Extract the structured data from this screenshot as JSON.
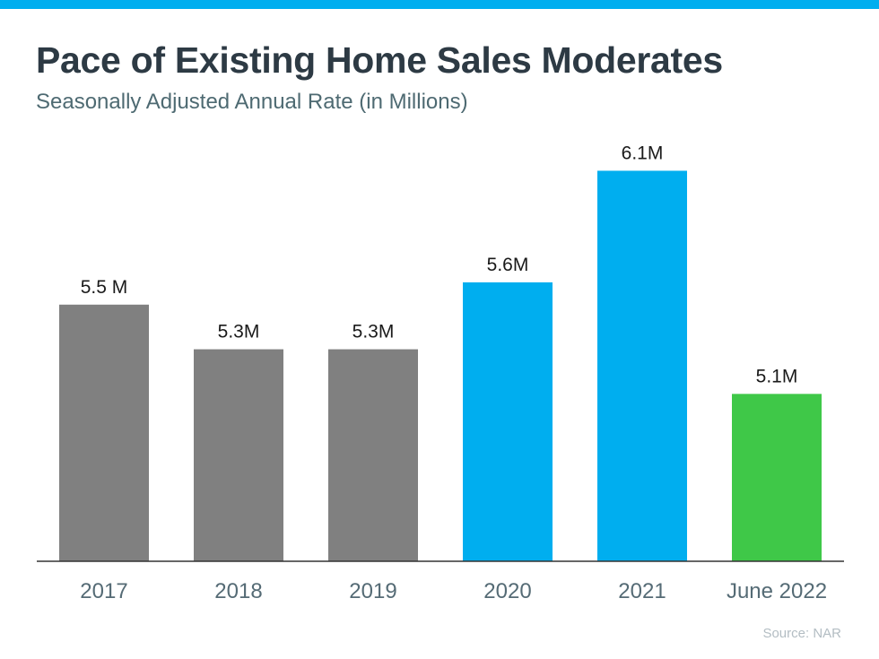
{
  "header": {
    "title": "Pace of Existing Home Sales Moderates",
    "subtitle": "Seasonally Adjusted Annual Rate (in Millions)"
  },
  "footer": {
    "source": "Source: NAR"
  },
  "colors": {
    "accent_bar": "#00aeef",
    "gray": "#808080",
    "blue": "#00aeef",
    "green": "#3fc848",
    "axis": "#333333",
    "tick_label": "#556b75",
    "value_label": "#1a1a1a"
  },
  "chart_data": {
    "type": "bar",
    "title": "Pace of Existing Home Sales Moderates",
    "subtitle": "Seasonally Adjusted Annual Rate (in Millions)",
    "xlabel": "",
    "ylabel": "",
    "categories": [
      "2017",
      "2018",
      "2019",
      "2020",
      "2021",
      "June 2022"
    ],
    "values": [
      5.5,
      5.3,
      5.3,
      5.6,
      6.1,
      5.1
    ],
    "value_labels": [
      "5.5 M",
      "5.3M",
      "5.3M",
      "5.6M",
      "6.1M",
      "5.1M"
    ],
    "bar_colors": [
      "#808080",
      "#808080",
      "#808080",
      "#00aeef",
      "#00aeef",
      "#3fc848"
    ],
    "ylim": [
      4.35,
      6.15
    ],
    "grid": false,
    "legend": "none"
  }
}
